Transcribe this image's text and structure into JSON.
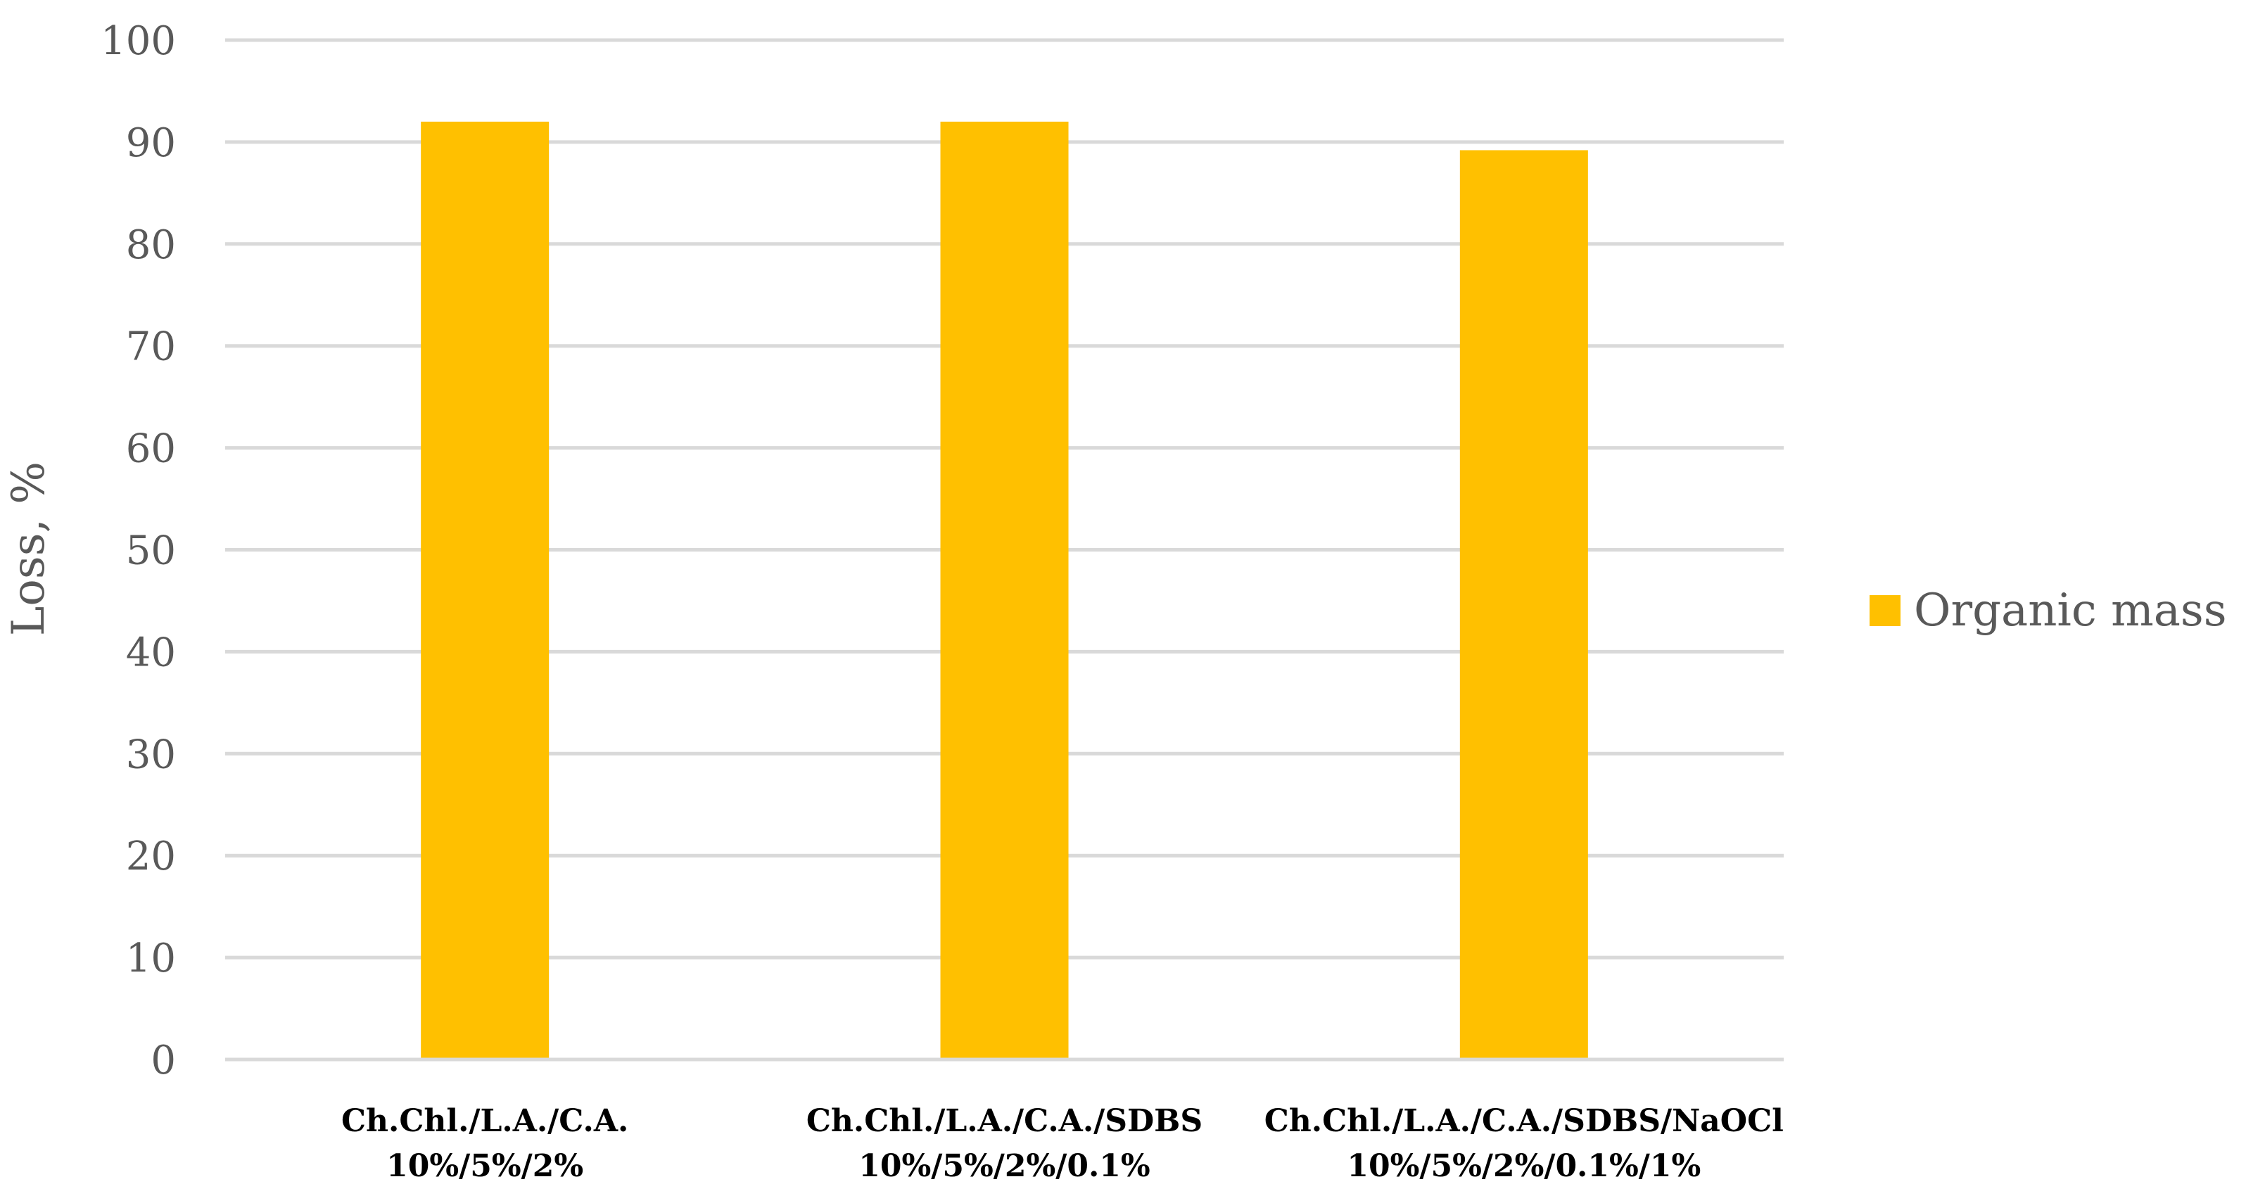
{
  "chart_data": {
    "type": "bar",
    "categories": [
      [
        "Ch.Chl./L.A./C.A.",
        "10%/5%/2%"
      ],
      [
        "Ch.Chl./L.A./C.A./SDBS",
        "10%/5%/2%/0.1%"
      ],
      [
        "Ch.Chl./L.A./C.A./SDBS/NaOCl",
        "10%/5%/2%/0.1%/1%"
      ]
    ],
    "series": [
      {
        "name": "Organic mass",
        "values": [
          92,
          92,
          89.2
        ],
        "color": "#FFC000"
      }
    ],
    "title": "",
    "xlabel": "",
    "ylabel": "Loss, %",
    "ylim": [
      0,
      100
    ],
    "yticks": [
      0,
      10,
      20,
      30,
      40,
      50,
      60,
      70,
      80,
      90,
      100
    ],
    "grid": true,
    "legend_position": "right"
  }
}
